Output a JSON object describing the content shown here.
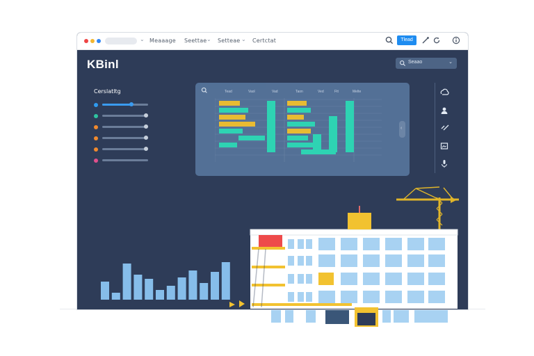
{
  "topbar": {
    "nav": [
      "Meaaage",
      "Seettae",
      "Setteae",
      "Certctat"
    ],
    "button_label": "Tlead"
  },
  "app": {
    "title": "KBinl"
  },
  "search": {
    "label": "Seaao"
  },
  "sidebar": {
    "title": "Cerslatltg",
    "items": [
      {
        "color": "#2f9bf0",
        "fill": 0.75
      },
      {
        "color": "#2ec4a0",
        "fill": 0
      },
      {
        "color": "#f08a2e",
        "fill": 0
      },
      {
        "color": "#f08a2e",
        "fill": 0
      },
      {
        "color": "#f08a2e",
        "fill": 0
      },
      {
        "color": "#e0508c",
        "fill": 0
      }
    ]
  },
  "panel": {
    "columns": [
      "Tead",
      "Vaol",
      "Vad",
      "Taon",
      "Ved",
      "Ftt",
      "Melte"
    ],
    "handle_glyph": "‹",
    "bars": [
      {
        "x": 6,
        "y": 4,
        "w": 30,
        "color": "#f2c230"
      },
      {
        "x": 6,
        "y": 14,
        "w": 42,
        "color": "#2fdcb8"
      },
      {
        "x": 6,
        "y": 24,
        "w": 38,
        "color": "#f2c230"
      },
      {
        "x": 6,
        "y": 34,
        "w": 52,
        "color": "#f2c230"
      },
      {
        "x": 6,
        "y": 44,
        "w": 34,
        "color": "#2fdcb8"
      },
      {
        "x": 34,
        "y": 54,
        "w": 38,
        "color": "#2fdcb8"
      },
      {
        "x": 6,
        "y": 64,
        "w": 26,
        "color": "#2fdcb8"
      },
      {
        "x": 104,
        "y": 4,
        "w": 28,
        "color": "#f2c230"
      },
      {
        "x": 104,
        "y": 14,
        "w": 34,
        "color": "#2fdcb8"
      },
      {
        "x": 104,
        "y": 24,
        "w": 24,
        "color": "#f2c230"
      },
      {
        "x": 104,
        "y": 34,
        "w": 40,
        "color": "#2fdcb8"
      },
      {
        "x": 104,
        "y": 44,
        "w": 34,
        "color": "#f2c230"
      },
      {
        "x": 104,
        "y": 54,
        "w": 30,
        "color": "#2fdcb8"
      },
      {
        "x": 104,
        "y": 64,
        "w": 48,
        "color": "#2fdcb8"
      },
      {
        "x": 124,
        "y": 74,
        "w": 50,
        "color": "#2fdcb8"
      }
    ],
    "columns_vertical": [
      {
        "x": 75,
        "top": 4,
        "h": 74,
        "color": "#2fdcb8"
      },
      {
        "x": 141,
        "top": 52,
        "h": 28,
        "color": "#2fdcb8"
      },
      {
        "x": 164,
        "top": 26,
        "h": 52,
        "color": "#2fdcb8"
      },
      {
        "x": 188,
        "top": 4,
        "h": 74,
        "color": "#2fdcb8"
      }
    ]
  },
  "skyline": {
    "values": [
      26,
      10,
      52,
      36,
      30,
      14,
      20,
      32,
      42,
      24,
      40,
      54
    ]
  }
}
